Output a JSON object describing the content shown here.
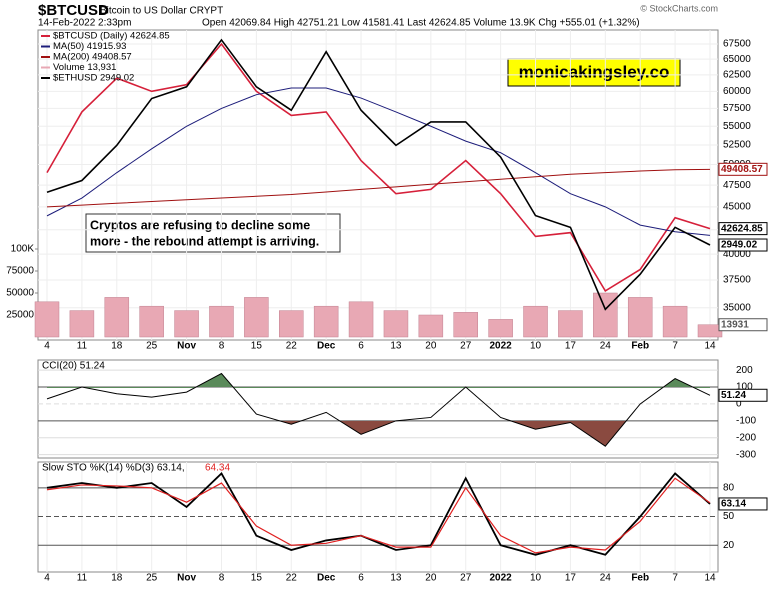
{
  "header": {
    "symbol": "$BTCUSD",
    "name": "Bitcoin to US Dollar  CRYPT",
    "datetime": "14-Feb-2022 2:33pm",
    "quote": "Open 42069.84 High 42751.21 Low 41581.41 Last 42624.85 Volume 13.9K Chg +555.01 (+1.32%)",
    "copyright": "© StockCharts.com"
  },
  "chart_data": [
    {
      "type": "line",
      "log_scale": true,
      "categories": [
        "4",
        "11",
        "18",
        "25",
        "Nov",
        "8",
        "15",
        "22",
        "Dec",
        "6",
        "13",
        "20",
        "27",
        "2022",
        "10",
        "17",
        "24",
        "Feb",
        "7",
        "14"
      ],
      "ylim": [
        32300,
        69900
      ],
      "yticks": [
        35000,
        37500,
        40000,
        42500,
        45000,
        47500,
        50000,
        52500,
        55000,
        57500,
        60000,
        62500,
        65000,
        67500
      ],
      "y2lim": [
        2138,
        4785
      ],
      "series": [
        {
          "name": "$BTCUSD (Daily) 42624.85",
          "color": "#d6203a",
          "values": [
            49000,
            57000,
            62000,
            60000,
            61000,
            67500,
            60000,
            56500,
            57000,
            50500,
            46500,
            47000,
            50500,
            46500,
            41800,
            42200,
            36500,
            38500,
            43800,
            42624.85
          ]
        },
        {
          "name": "MA(50) 41915.93",
          "color": "#1c1c7a",
          "values": [
            44000,
            46000,
            49000,
            52000,
            55000,
            57500,
            59500,
            60500,
            60500,
            59000,
            57000,
            55000,
            53000,
            51500,
            49000,
            46500,
            45000,
            43000,
            42300,
            41915.93
          ]
        },
        {
          "name": "MA(200) 49408.57",
          "color": "#a01010",
          "values": [
            45000,
            45200,
            45400,
            45600,
            45800,
            46000,
            46200,
            46400,
            46700,
            47000,
            47300,
            47600,
            47900,
            48200,
            48500,
            48800,
            49000,
            49200,
            49350,
            49408.57
          ]
        },
        {
          "name": "$ETHUSD 2949.02",
          "color": "#000000",
          "axis": "y2",
          "values": [
            3400,
            3500,
            3800,
            4200,
            4300,
            4700,
            4300,
            4100,
            4600,
            4100,
            3800,
            4000,
            4000,
            3700,
            3200,
            3100,
            2400,
            2700,
            3100,
            2949.02
          ]
        }
      ],
      "volume": {
        "name": "Volume 13,931",
        "color": "#e8a8b4",
        "ylim": [
          0,
          100000
        ],
        "yticks": [
          25000,
          50000,
          75000,
          {
            "value": 100000,
            "label": "100K"
          }
        ],
        "values": [
          40000,
          30000,
          45000,
          35000,
          30000,
          35000,
          45000,
          30000,
          35000,
          40000,
          30000,
          25000,
          28000,
          20000,
          35000,
          30000,
          50000,
          45000,
          35000,
          13931
        ]
      },
      "annotation": [
        "Cryptos are refusing to decline some",
        "more - the rebound attempt is arriving."
      ],
      "watermark": "monicakingsley.co"
    },
    {
      "type": "line",
      "title": "CCI(20) 51.24",
      "ylim": [
        -320,
        260
      ],
      "yticks": [
        200,
        100,
        0,
        -100,
        -200,
        -300
      ],
      "series": [
        {
          "name": "CCI(20)",
          "color": "#000000",
          "values": [
            30,
            100,
            60,
            40,
            70,
            180,
            -60,
            -120,
            -50,
            -180,
            -100,
            -80,
            100,
            -80,
            -150,
            -110,
            -250,
            0,
            150,
            51.24
          ]
        }
      ]
    },
    {
      "type": "line",
      "title": "Slow STO %K(14) %D(3) 63.14,",
      "title_d": "64.34",
      "ylim": [
        -8,
        107
      ],
      "yticks": [
        80,
        50,
        20
      ],
      "series": [
        {
          "name": "%K",
          "color": "#000000",
          "values": [
            80,
            85,
            80,
            85,
            60,
            95,
            30,
            15,
            25,
            30,
            15,
            20,
            90,
            20,
            10,
            20,
            10,
            50,
            95,
            63.14
          ]
        },
        {
          "name": "%D",
          "color": "#e02020",
          "values": [
            78,
            83,
            82,
            80,
            65,
            85,
            40,
            20,
            22,
            30,
            18,
            18,
            80,
            30,
            12,
            18,
            15,
            45,
            90,
            64.34
          ]
        }
      ]
    }
  ]
}
